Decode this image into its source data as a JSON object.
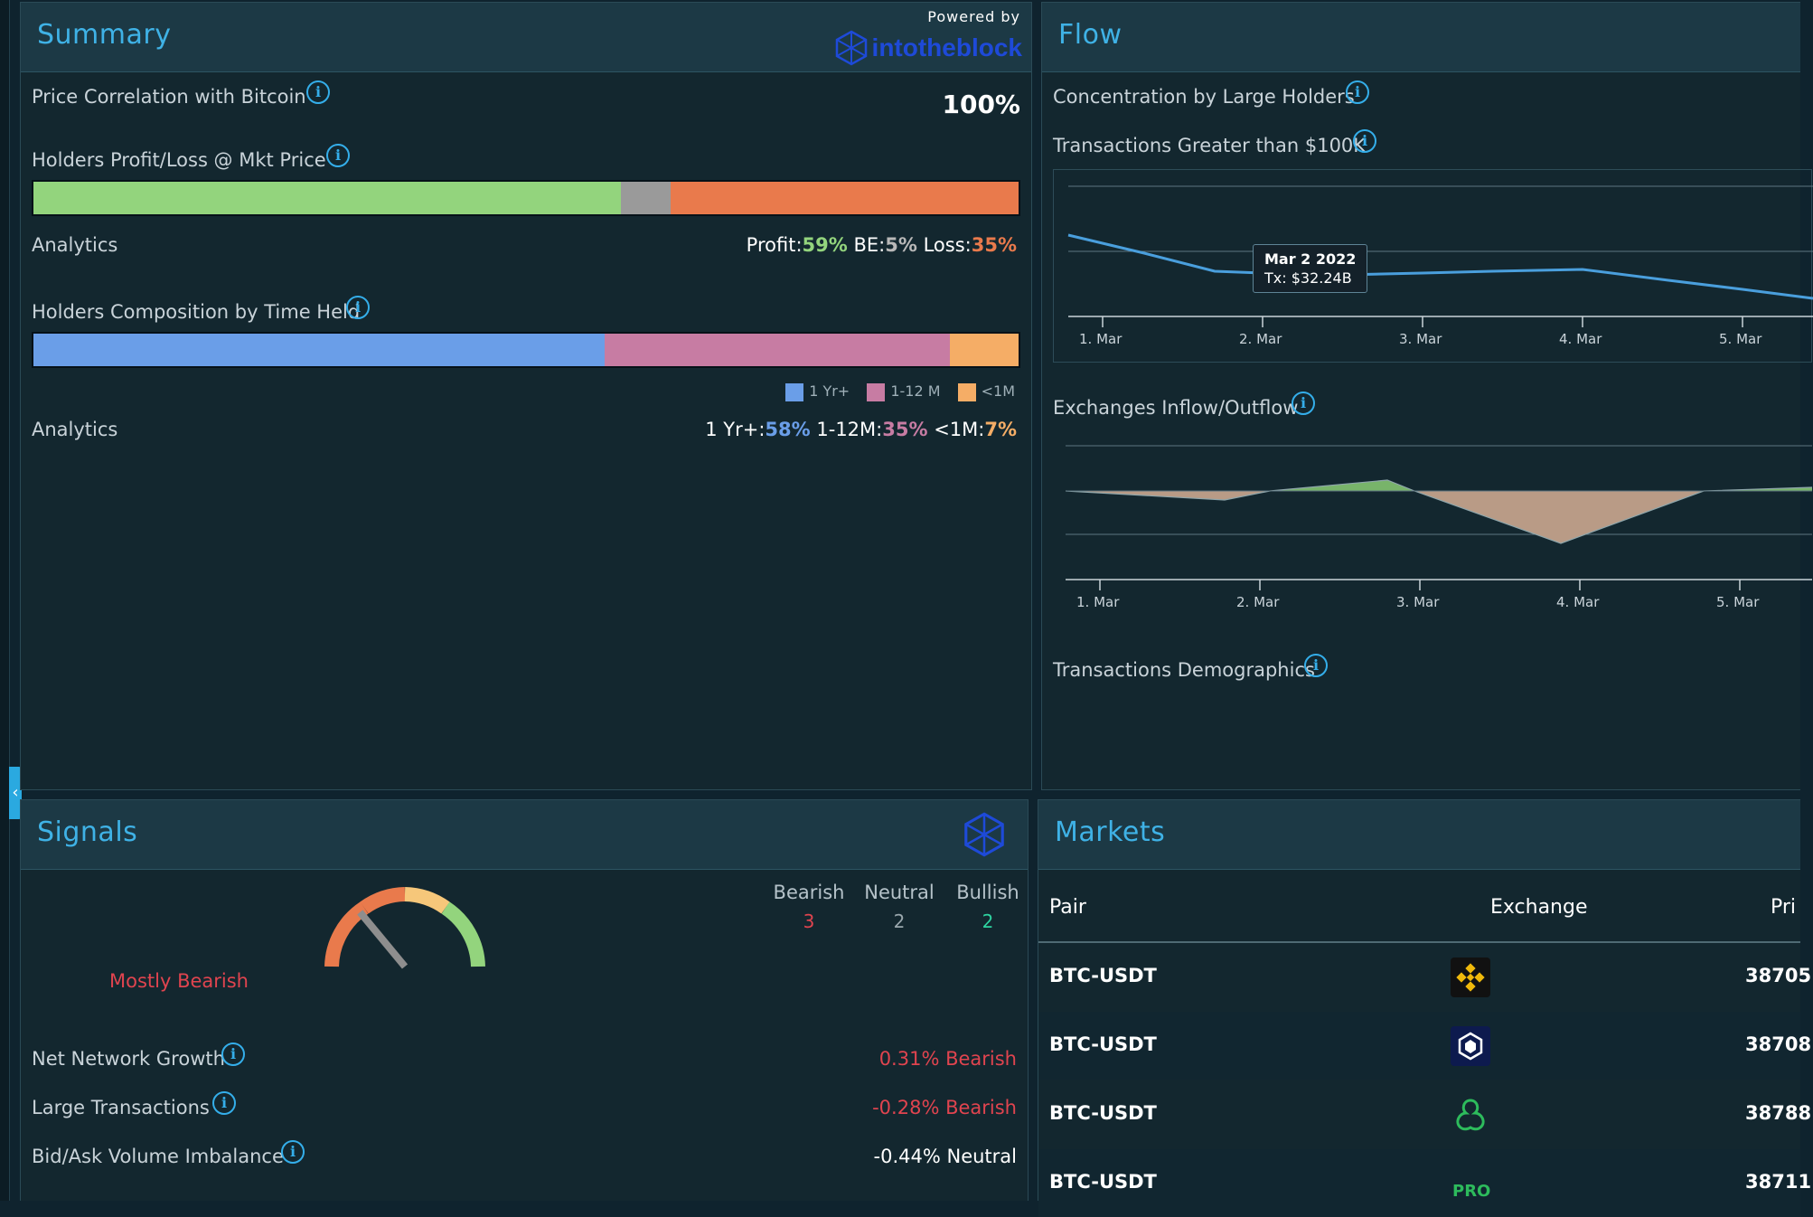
{
  "summary": {
    "title": "Summary",
    "powered_by": "Powered by",
    "brand_text": "intotheblock",
    "price_corr_label": "Price Correlation with Bitcoin",
    "price_corr_value": "100%",
    "profit_loss_label": "Holders Profit/Loss @ Mkt Price",
    "profit_loss_bar": {
      "profit": 0.59,
      "be": 0.05,
      "loss": 0.35
    },
    "analytics_label": "Analytics",
    "pl_profit_label": "Profit:",
    "pl_profit_value": "59%",
    "pl_be_label": "BE:",
    "pl_be_value": "5%",
    "pl_loss_label": "Loss:",
    "pl_loss_value": "35%",
    "time_held_label": "Holders Composition by Time Held",
    "time_held_bar": {
      "yr1": 0.58,
      "m1_12": 0.35,
      "lt1m": 0.07
    },
    "legend": [
      "1 Yr+",
      "1-12 M",
      "<1M"
    ],
    "analytics_label2": "Analytics",
    "th_yr_label": "1 Yr+:",
    "th_yr_value": "58%",
    "th_m_label": "1-12M:",
    "th_m_value": "35%",
    "th_lt_label": "<1M:",
    "th_lt_value": "7%"
  },
  "flow": {
    "title": "Flow",
    "concentration_label": "Concentration by Large Holders",
    "tx_label": "Transactions Greater than $100K",
    "tooltip_date": "Mar 2 2022",
    "tooltip_value": "Tx: $32.24B",
    "x_ticks": [
      "1. Mar",
      "2. Mar",
      "3. Mar",
      "4. Mar",
      "5. Mar"
    ],
    "inflow_label": "Exchanges Inflow/Outflow",
    "x_ticks2": [
      "1. Mar",
      "2. Mar",
      "3. Mar",
      "4. Mar",
      "5. Mar"
    ],
    "demographics_label": "Transactions Demographics"
  },
  "signals": {
    "title": "Signals",
    "status": "Mostly Bearish",
    "gauge_level": 0.28,
    "bearish_label": "Bearish",
    "bearish_count": "3",
    "neutral_label": "Neutral",
    "neutral_count": "2",
    "bullish_label": "Bullish",
    "bullish_count": "2",
    "rows": [
      {
        "label": "Net Network Growth",
        "value": "0.31% Bearish"
      },
      {
        "label": "Large Transactions",
        "value": "-0.28% Bearish"
      },
      {
        "label": "Bid/Ask Volume Imbalance",
        "value": "-0.44% Neutral"
      }
    ]
  },
  "markets": {
    "title": "Markets",
    "col_pair": "Pair",
    "col_exchange": "Exchange",
    "col_price": "Pri",
    "rows": [
      {
        "pair": "BTC-USDT",
        "exchange_icon": "binance-icon",
        "price": "38705"
      },
      {
        "pair": "BTC-USDT",
        "exchange_icon": "crypto-com-icon",
        "price": "38708"
      },
      {
        "pair": "BTC-USDT",
        "exchange_icon": "ascendex-icon",
        "price": "38788"
      },
      {
        "pair": "BTC-USDT",
        "exchange_icon": "changelly-pro-icon",
        "price": "38711"
      }
    ]
  },
  "colors": {
    "accent": "#3fb2e6",
    "profit": "#93d47d",
    "be": "#9a9a9a",
    "loss": "#e97a4c",
    "yr1": "#6a9ee8",
    "m1_12": "#c77ca3",
    "lt1m": "#f5ad66",
    "bearish": "#e0444f",
    "bullish": "#2ed3a0"
  }
}
